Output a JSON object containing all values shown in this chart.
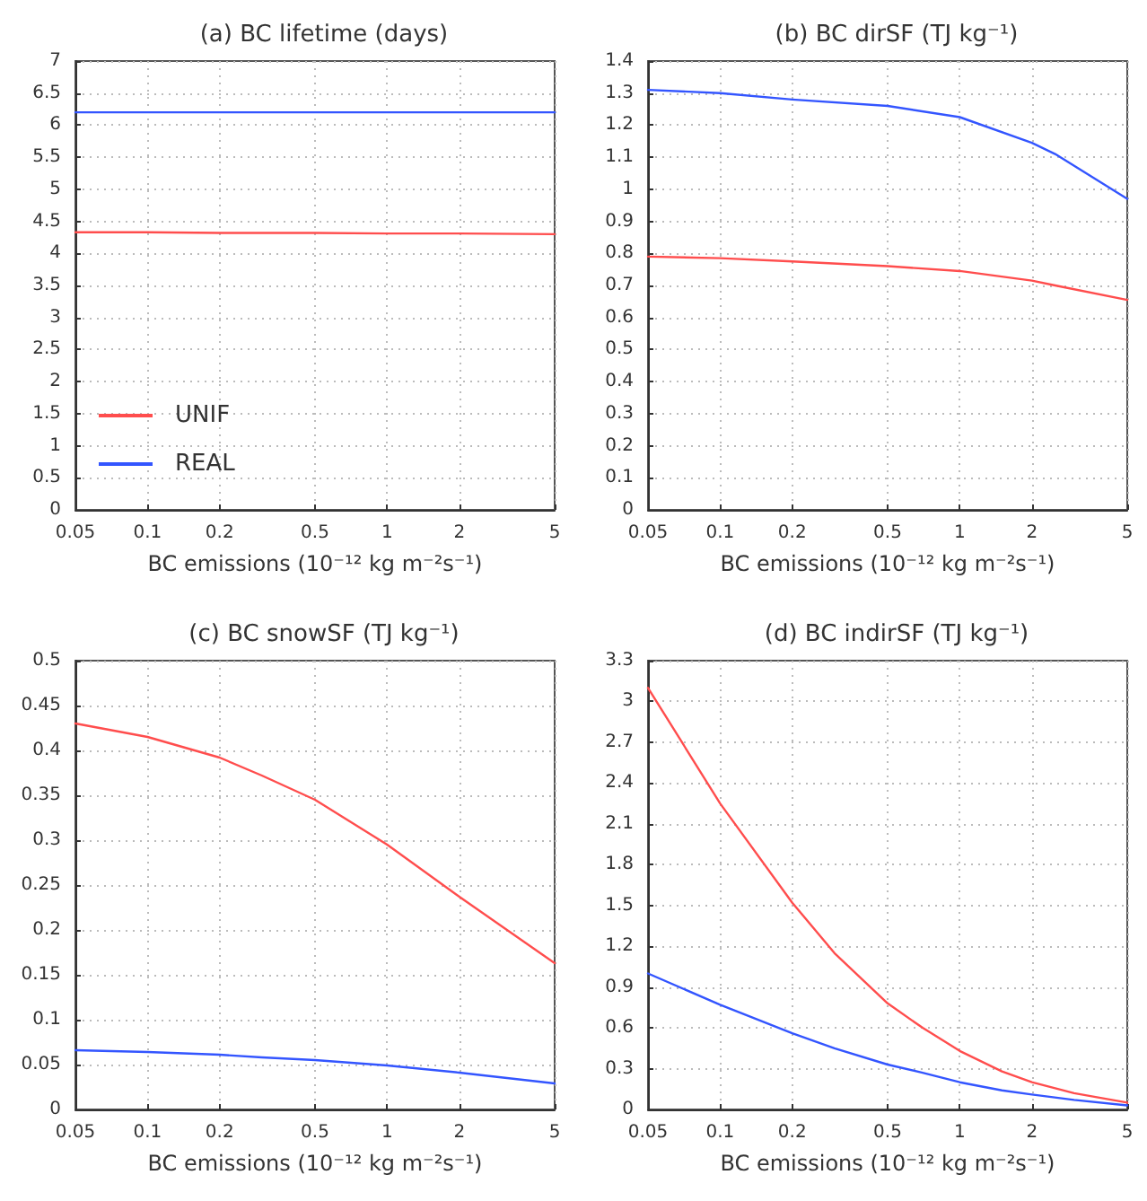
{
  "chart_data": [
    {
      "type": "line",
      "title": "(a) BC lifetime (days)",
      "xlabel": "BC emissions (10⁻¹² kg m⁻²s⁻¹)",
      "log": "x",
      "xlim": [
        0.05,
        5
      ],
      "xticks": [
        0.05,
        0.1,
        0.2,
        0.5,
        1,
        2,
        5
      ],
      "ylim": [
        0,
        7
      ],
      "yticks": [
        0,
        0.5,
        1,
        1.5,
        2,
        2.5,
        3,
        3.5,
        4,
        4.5,
        5,
        5.5,
        6,
        6.5,
        7
      ],
      "grid": true,
      "legend": "bottom left",
      "marker": "none",
      "x": [
        0.05,
        0.1,
        0.2,
        0.5,
        1,
        2,
        5
      ],
      "series": [
        {
          "name": "UNIF",
          "color": "#ff4d4d",
          "values": [
            4.33,
            4.33,
            4.32,
            4.32,
            4.31,
            4.31,
            4.3
          ]
        },
        {
          "name": "REAL",
          "color": "#3355ff",
          "values": [
            6.2,
            6.2,
            6.2,
            6.2,
            6.2,
            6.2,
            6.2
          ]
        }
      ]
    },
    {
      "type": "line",
      "title": "(b) BC dirSF (TJ kg⁻¹)",
      "xlabel": "BC emissions (10⁻¹² kg m⁻²s⁻¹)",
      "log": "x",
      "xlim": [
        0.05,
        5
      ],
      "xticks": [
        0.05,
        0.1,
        0.2,
        0.5,
        1,
        2,
        5
      ],
      "ylim": [
        0,
        1.4
      ],
      "yticks": [
        0,
        0.1,
        0.2,
        0.3,
        0.4,
        0.5,
        0.6,
        0.7,
        0.8,
        0.9,
        1,
        1.1,
        1.2,
        1.3,
        1.4
      ],
      "grid": true,
      "marker": "none",
      "x": [
        0.05,
        0.1,
        0.2,
        0.5,
        1,
        2,
        2.5,
        5
      ],
      "series": [
        {
          "color": "#ff4d4d",
          "values": [
            0.79,
            0.785,
            0.775,
            0.76,
            0.745,
            0.715,
            0.7,
            0.655
          ]
        },
        {
          "color": "#3355ff",
          "values": [
            1.31,
            1.3,
            1.28,
            1.26,
            1.225,
            1.145,
            1.11,
            0.97
          ]
        }
      ]
    },
    {
      "type": "line",
      "title": "(c) BC snowSF (TJ kg⁻¹)",
      "xlabel": "BC emissions (10⁻¹² kg m⁻²s⁻¹)",
      "log": "x",
      "xlim": [
        0.05,
        5
      ],
      "xticks": [
        0.05,
        0.1,
        0.2,
        0.5,
        1,
        2,
        5
      ],
      "ylim": [
        0,
        0.5
      ],
      "yticks": [
        0,
        0.05,
        0.1,
        0.15,
        0.2,
        0.25,
        0.3,
        0.35,
        0.4,
        0.45,
        0.5
      ],
      "grid": true,
      "marker": "none",
      "x": [
        0.05,
        0.1,
        0.2,
        0.3,
        0.5,
        1,
        2,
        5
      ],
      "series": [
        {
          "color": "#ff4d4d",
          "values": [
            0.43,
            0.415,
            0.392,
            0.372,
            0.345,
            0.295,
            0.237,
            0.163
          ]
        },
        {
          "color": "#3355ff",
          "values": [
            0.066,
            0.064,
            0.061,
            0.058,
            0.055,
            0.049,
            0.041,
            0.029
          ]
        }
      ]
    },
    {
      "type": "line",
      "title": "(d) BC indirSF (TJ kg⁻¹)",
      "xlabel": "BC emissions (10⁻¹² kg m⁻²s⁻¹)",
      "log": "x",
      "xlim": [
        0.05,
        5
      ],
      "xticks": [
        0.05,
        0.1,
        0.2,
        0.5,
        1,
        2,
        5
      ],
      "ylim": [
        0,
        3.3
      ],
      "yticks": [
        0,
        0.3,
        0.6,
        0.9,
        1.2,
        1.5,
        1.8,
        2.1,
        2.4,
        2.7,
        3,
        3.3
      ],
      "grid": true,
      "marker": "none",
      "x": [
        0.05,
        0.1,
        0.2,
        0.3,
        0.5,
        0.7,
        1,
        1.5,
        2,
        3,
        5
      ],
      "series": [
        {
          "color": "#ff4d4d",
          "values": [
            3.1,
            2.25,
            1.52,
            1.15,
            0.78,
            0.6,
            0.43,
            0.28,
            0.2,
            0.12,
            0.05
          ]
        },
        {
          "color": "#3355ff",
          "values": [
            1.0,
            0.77,
            0.56,
            0.45,
            0.33,
            0.27,
            0.2,
            0.14,
            0.11,
            0.07,
            0.03
          ]
        }
      ]
    }
  ]
}
